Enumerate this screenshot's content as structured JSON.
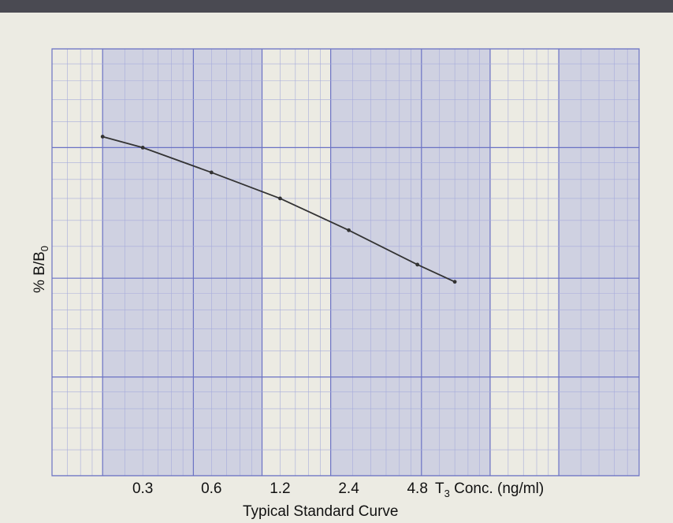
{
  "chart_data": {
    "type": "line",
    "title": "",
    "caption": "Typical Standard Curve",
    "xlabel_main": "T",
    "xlabel_sub": "3",
    "xlabel_rest": " Conc. (ng/ml)",
    "ylabel_main": "% B/B",
    "ylabel_sub": "0",
    "x_scale": "log",
    "y_scale": "log",
    "x_tick_labels": [
      "0.3",
      "0.6",
      "1.2",
      "2.4",
      "4.8"
    ],
    "x_ticks": [
      0.3,
      0.6,
      1.2,
      2.4,
      4.8
    ],
    "xlim": [
      0.12,
      45
    ],
    "ylim": [
      5,
      100
    ],
    "grid": true,
    "series": [
      {
        "x": [
          0.2,
          0.3,
          0.6,
          1.2,
          2.4,
          4.8,
          7.0
        ],
        "y": [
          54,
          50,
          42,
          35,
          28,
          22,
          19.5
        ]
      }
    ],
    "colors": {
      "background": "#ecebe3",
      "grid_minor": "#a7acdb",
      "grid_major": "#6a72c4",
      "band": "#9aa1de",
      "curve": "#333333"
    }
  }
}
